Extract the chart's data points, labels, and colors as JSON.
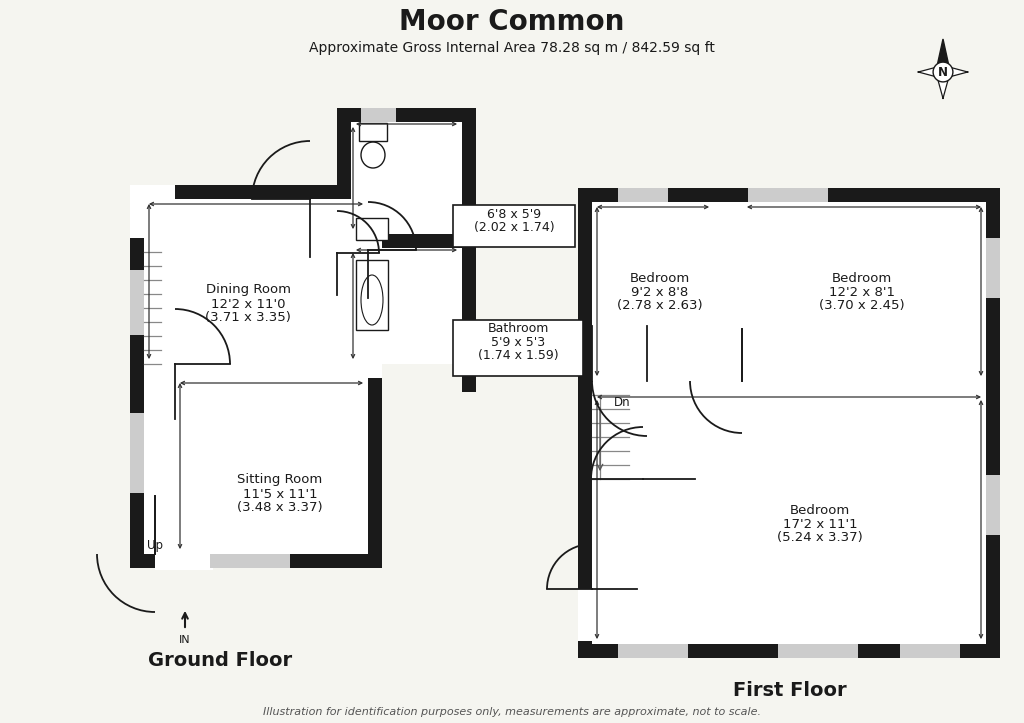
{
  "title": "Moor Common",
  "subtitle": "Approximate Gross Internal Area 78.28 sq m / 842.59 sq ft",
  "footer": "Illustration for identification purposes only, measurements are approximate, not to scale.",
  "ground_floor_label": "Ground Floor",
  "first_floor_label": "First Floor",
  "wall_color": "#1a1a1a",
  "bg_color": "#f5f5f0",
  "room_label_dining": [
    "Dining Room",
    "12'2 x 11'0",
    "(3.71 x 3.35)"
  ],
  "room_label_sitting": [
    "Sitting Room",
    "11'5 x 11'1",
    "(3.48 x 3.37)"
  ],
  "room_label_wc": [
    "6'8 x 5'9",
    "(2.02 x 1.74)"
  ],
  "room_label_bath": [
    "Bathroom",
    "5'9 x 5'3",
    "(1.74 x 1.59)"
  ],
  "room_label_bed1": [
    "Bedroom",
    "9'2 x 8'8",
    "(2.78 x 2.63)"
  ],
  "room_label_bed2": [
    "Bedroom",
    "12'2 x 8'1",
    "(3.70 x 2.45)"
  ],
  "room_label_bed3": [
    "Bedroom",
    "17'2 x 11'1",
    "(5.24 x 3.37)"
  ]
}
